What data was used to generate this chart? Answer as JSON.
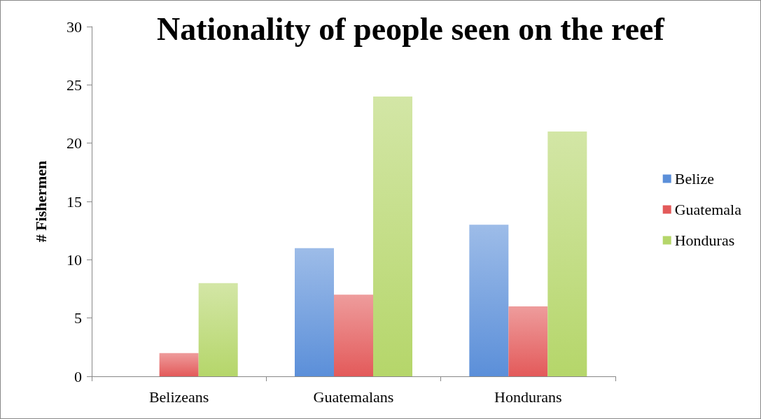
{
  "chart_data": {
    "type": "bar",
    "title": "Nationality of people seen on the reef",
    "ylabel": "# Fishermen",
    "categories": [
      "Belizeans",
      "Guatemalans",
      "Hondurans"
    ],
    "series": [
      {
        "name": "Belize",
        "color": "#5b8fd9",
        "values": [
          0,
          11,
          13
        ]
      },
      {
        "name": "Guatemala",
        "color": "#e35a5a",
        "values": [
          2,
          7,
          6
        ]
      },
      {
        "name": "Honduras",
        "color": "#b5d66a",
        "values": [
          8,
          24,
          21
        ]
      }
    ],
    "ylim": [
      0,
      30
    ],
    "yticks": [
      0,
      5,
      10,
      15,
      20,
      25,
      30
    ],
    "grid": false,
    "legend": "right"
  }
}
